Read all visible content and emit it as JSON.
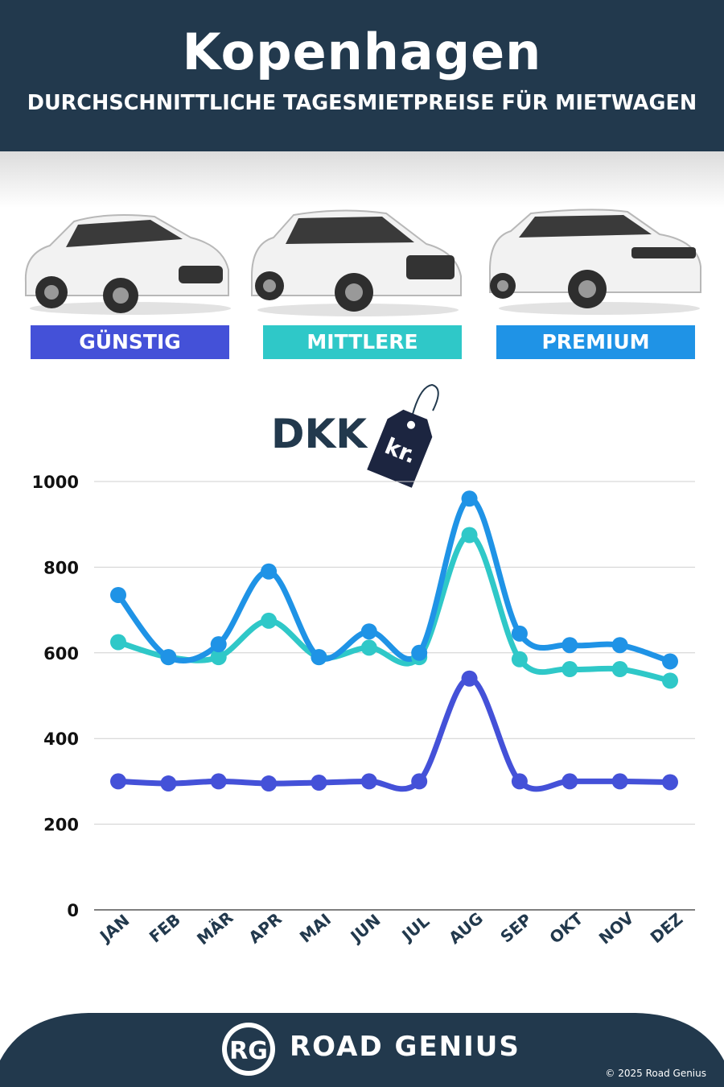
{
  "header": {
    "title": "Kopenhagen",
    "subtitle": "DURCHSCHNITTLICHE TAGESMIETPREISE FÜR MIETWAGEN"
  },
  "categories": [
    {
      "label": "GÜNSTIG",
      "color": "#4451d8"
    },
    {
      "label": "MITTLERE",
      "color": "#2fc8c8"
    },
    {
      "label": "PREMIUM",
      "color": "#1f93e6"
    }
  ],
  "currency": {
    "label": "DKK",
    "tag_text": "kr."
  },
  "chart_data": {
    "type": "line",
    "x": [
      "JAN",
      "FEB",
      "MÄR",
      "APR",
      "MAI",
      "JUN",
      "JUL",
      "AUG",
      "SEP",
      "OKT",
      "NOV",
      "DEZ"
    ],
    "series": [
      {
        "name": "GÜNSTIG",
        "color": "#4451d8",
        "values": [
          300,
          295,
          300,
          295,
          297,
          300,
          300,
          540,
          300,
          300,
          300,
          298
        ]
      },
      {
        "name": "MITTLERE",
        "color": "#2fc8c8",
        "values": [
          625,
          590,
          590,
          675,
          590,
          612,
          590,
          875,
          585,
          562,
          562,
          535
        ]
      },
      {
        "name": "PREMIUM",
        "color": "#1f93e6",
        "values": [
          735,
          590,
          620,
          790,
          590,
          650,
          600,
          960,
          645,
          618,
          618,
          580
        ]
      }
    ],
    "yticks": [
      0,
      200,
      400,
      600,
      800,
      1000
    ],
    "ylim": [
      0,
      1000
    ],
    "grid": true
  },
  "footer": {
    "logo_text": "RG",
    "brand": "ROAD GENIUS",
    "copyright": "© 2025 Road Genius"
  }
}
